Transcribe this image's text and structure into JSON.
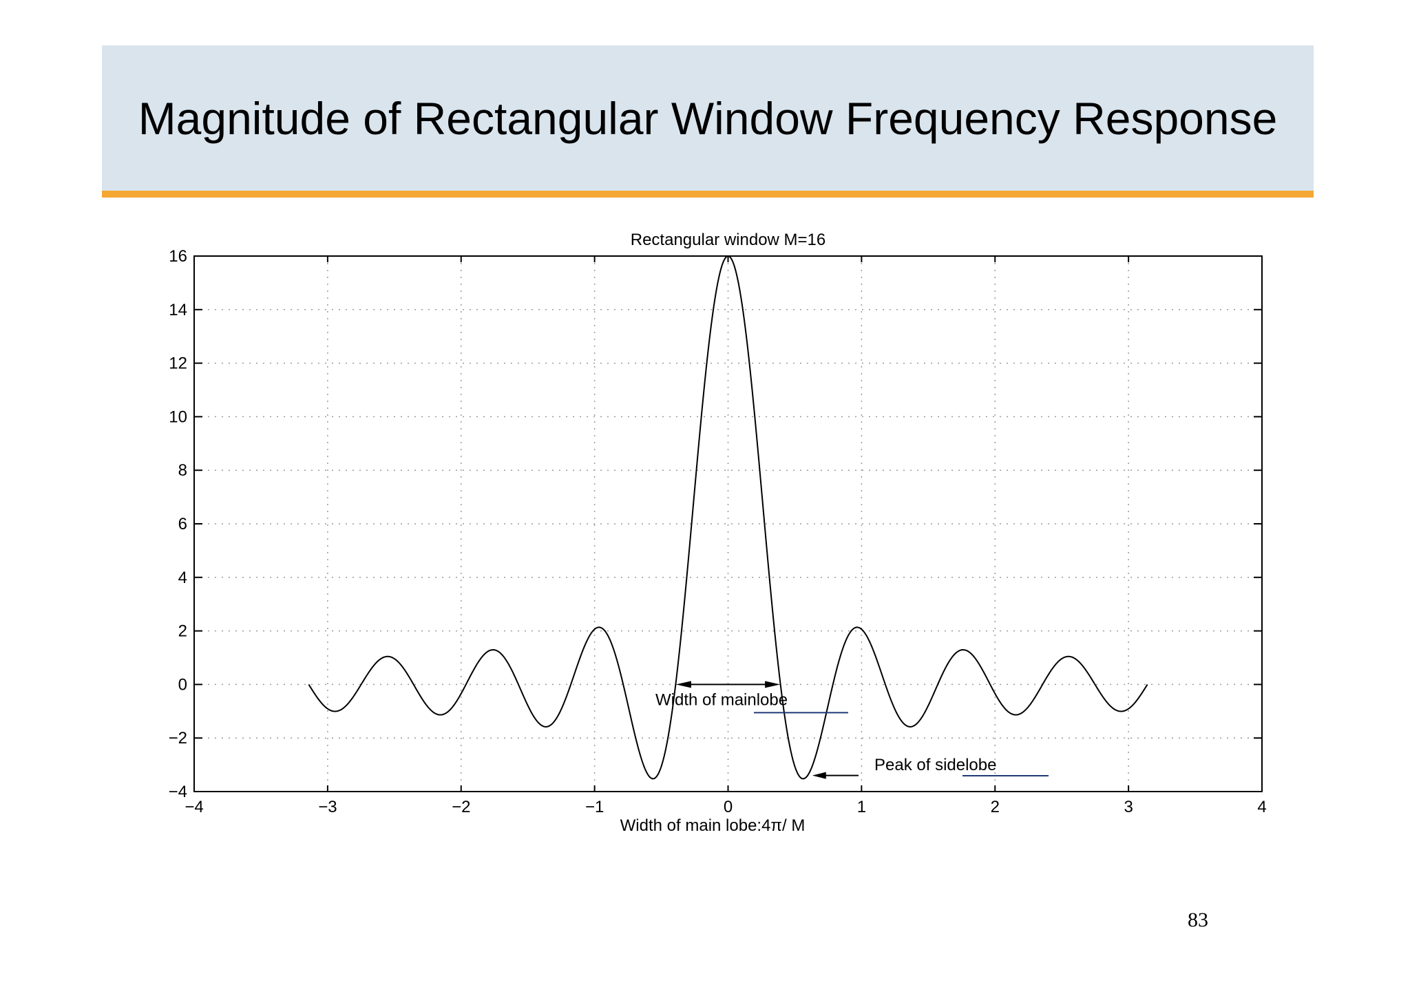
{
  "slide": {
    "title": "Magnitude of Rectangular Window Frequency Response",
    "page_number": "83"
  },
  "colors": {
    "title_bar": "#d9e4ed",
    "title_underline": "#f5a733",
    "curve": "#000000",
    "annotation_underline": "#1f3a78"
  },
  "chart_data": {
    "type": "line",
    "title": "Rectangular window M=16",
    "xlabel": "Width of main lobe:4π/ M",
    "ylabel": "",
    "xlim": [
      -4,
      4
    ],
    "ylim": [
      -4,
      16
    ],
    "grid": true,
    "xticks": [
      -4,
      -3,
      -2,
      -1,
      0,
      1,
      2,
      3,
      4
    ],
    "xtick_labels": [
      "−4",
      "−3",
      "−2",
      "−1",
      "0",
      "1",
      "2",
      "3",
      "4"
    ],
    "yticks": [
      -4,
      -2,
      0,
      2,
      4,
      6,
      8,
      10,
      12,
      14,
      16
    ],
    "ytick_labels": [
      "−4",
      "−2",
      "0",
      "2",
      "4",
      "6",
      "8",
      "10",
      "12",
      "14",
      "16"
    ],
    "series": [
      {
        "function": "sin(8*w)/sin(w/2)",
        "domain": [
          -3.1416,
          3.1416
        ],
        "samples": 801
      }
    ],
    "annotations": {
      "mainlobe": {
        "text_plain": "Width of ma",
        "text_underlined": "inlobe",
        "arrow_from_x": -0.39,
        "arrow_to_x": 0.39,
        "y": 0
      },
      "sidelobe": {
        "text_plain": "Peak of ",
        "text_underlined": "sidelobe",
        "point": [
          0.6,
          -3.45
        ]
      }
    }
  }
}
